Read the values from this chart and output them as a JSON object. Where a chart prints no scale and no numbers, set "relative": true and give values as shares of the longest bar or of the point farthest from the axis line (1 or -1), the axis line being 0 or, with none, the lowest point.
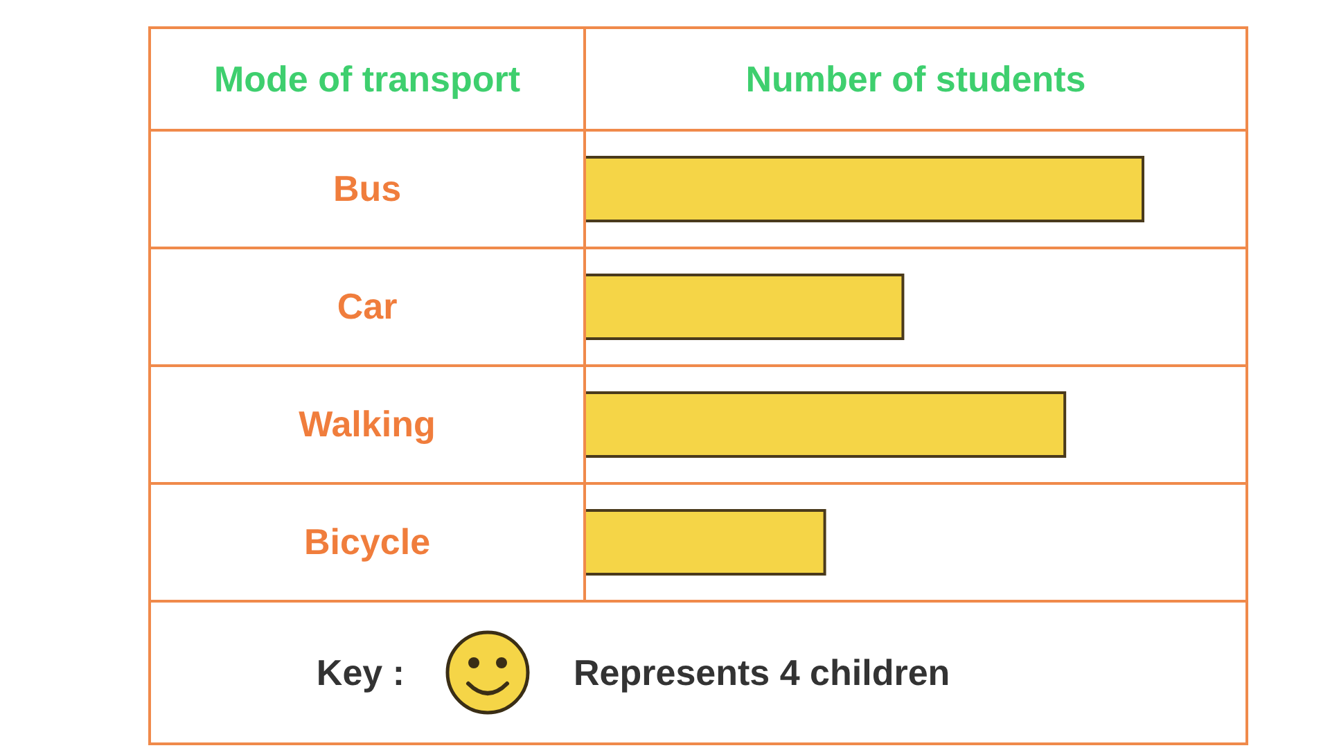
{
  "chart_data": {
    "type": "bar",
    "orientation": "horizontal",
    "relative": true,
    "ylabel": "Mode of transport",
    "xlabel": "Number of students",
    "categories": [
      "Bus",
      "Car",
      "Walking",
      "Bicycle"
    ],
    "values": [
      1,
      0.57,
      0.86,
      0.43
    ],
    "color": "#f5d547",
    "annotations": [
      "Key :",
      "Represents 4 children"
    ]
  }
}
